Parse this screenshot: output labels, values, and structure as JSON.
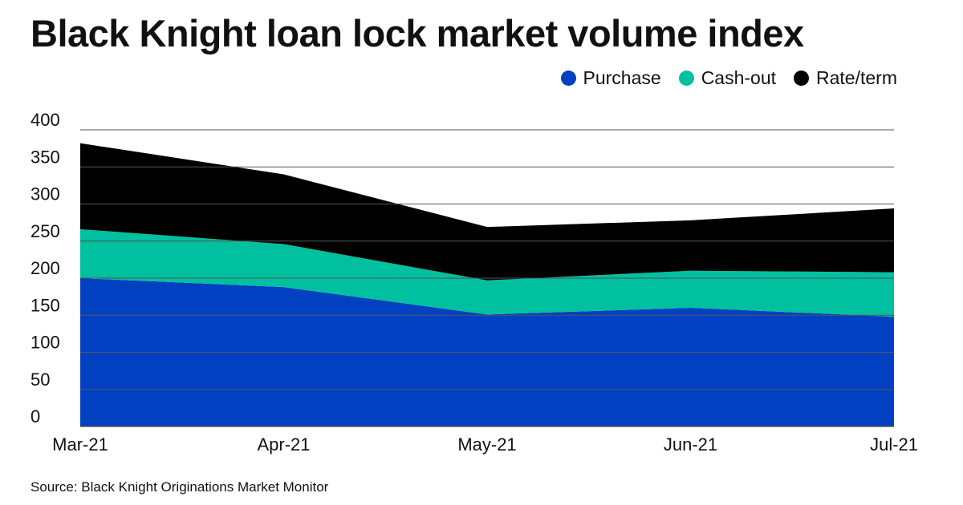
{
  "title": "Black Knight loan lock market volume index",
  "source": "Source: Black Knight Originations Market Monitor",
  "colors": {
    "purchase": "#0040c1",
    "cashout": "#00c0a0",
    "rateterm": "#000000",
    "grid": "#555555"
  },
  "chart_data": {
    "type": "area",
    "stacked": true,
    "title": "Black Knight loan lock market volume index",
    "categories": [
      "Mar-21",
      "Apr-21",
      "May-21",
      "Jun-21",
      "Jul-21"
    ],
    "series": [
      {
        "name": "Purchase",
        "values": [
          200,
          188,
          151,
          160,
          148
        ]
      },
      {
        "name": "Cash-out",
        "values": [
          66,
          58,
          46,
          50,
          60
        ]
      },
      {
        "name": "Rate/term",
        "values": [
          116,
          94,
          72,
          68,
          86
        ]
      }
    ],
    "ylim": [
      0,
      400
    ],
    "yticks": [
      0,
      50,
      100,
      150,
      200,
      250,
      300,
      350,
      400
    ],
    "grid": true,
    "legend_position": "top-right"
  }
}
